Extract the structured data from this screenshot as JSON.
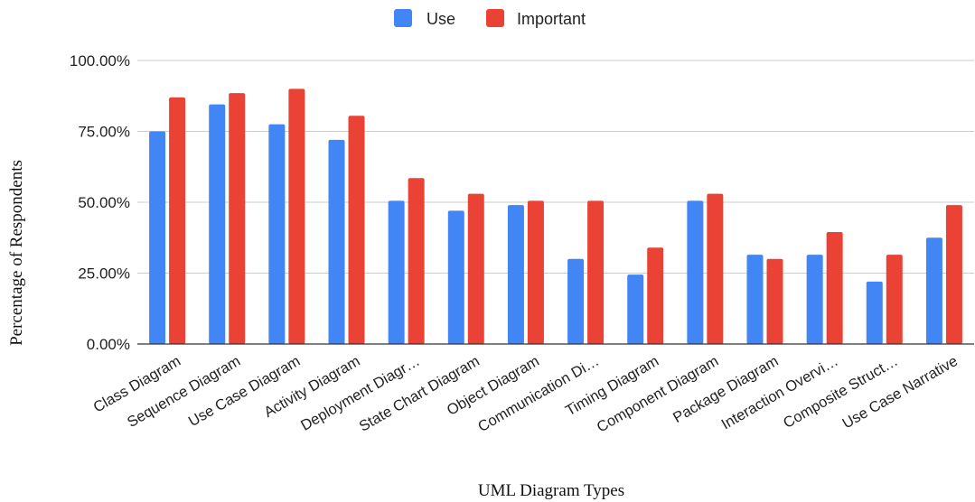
{
  "chart_data": {
    "type": "bar",
    "title": "",
    "xlabel": "UML Diagram Types",
    "ylabel": "Percentage of Respondents",
    "ylim": [
      0,
      100
    ],
    "yticks": [
      "0.00%",
      "25.00%",
      "50.00%",
      "75.00%",
      "100.00%"
    ],
    "ytick_values": [
      0,
      25,
      50,
      75,
      100
    ],
    "grid": true,
    "legend_position": "top",
    "categories": [
      "Class Diagram",
      "Sequence Diagram",
      "Use Case Diagram",
      "Activity Diagram",
      "Deployment Diagr…",
      "State Chart Diagram",
      "Object Diagram",
      "Communication Di…",
      "Timing Diagram",
      "Component Diagram",
      "Package Diagram",
      "Interaction Overvi…",
      "Composite Struct…",
      "Use Case Narrative"
    ],
    "series": [
      {
        "name": "Use",
        "color": "#4285f4",
        "values": [
          75,
          84.5,
          77.5,
          72,
          50.5,
          47,
          49,
          30,
          24.5,
          50.5,
          31.5,
          31.5,
          22,
          37.5
        ]
      },
      {
        "name": "Important",
        "color": "#ea4335",
        "values": [
          87,
          88.5,
          90,
          80.5,
          58.5,
          53,
          50.5,
          50.5,
          34,
          53,
          30,
          39.5,
          31.5,
          49
        ]
      }
    ]
  }
}
